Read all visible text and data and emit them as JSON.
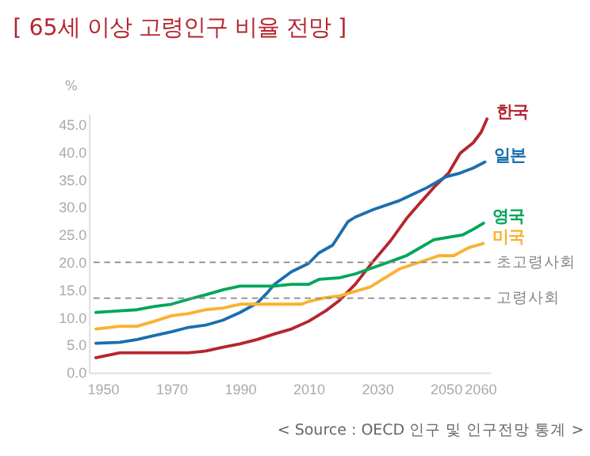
{
  "chart_data": {
    "type": "line",
    "title": "[ 65세 이상 고령인구 비율 전망 ]",
    "ylabel": "%",
    "xlim": [
      1946,
      2063
    ],
    "xticks": [
      1950,
      1970,
      1990,
      2010,
      2030,
      2050,
      2060
    ],
    "ylim": [
      0,
      47
    ],
    "yticks": [
      {
        "value": 0,
        "label": "0.0"
      },
      {
        "value": 5,
        "label": "5.0"
      },
      {
        "value": 10,
        "label": "10.0"
      },
      {
        "value": 15,
        "label": "15.0"
      },
      {
        "value": 20,
        "label": "20.0"
      },
      {
        "value": 25,
        "label": "25.0"
      },
      {
        "value": 30,
        "label": "30.0"
      },
      {
        "value": 35,
        "label": "35.0"
      },
      {
        "value": 40,
        "label": "40.0"
      },
      {
        "value": 45,
        "label": "45.0"
      }
    ],
    "grid": false,
    "legend": false,
    "marker": "none",
    "line_style": "solid",
    "series": [
      {
        "name": "한국",
        "color": "#b5262f",
        "x": [
          1948,
          1955,
          1975,
          1980,
          1985,
          1990,
          1995,
          2000,
          2005,
          2010,
          2015,
          2019,
          2023.6,
          2028.6,
          2034,
          2038.5,
          2042.4,
          2047,
          2050.8,
          2054.2,
          2058,
          2060.3,
          2062
        ],
        "values": [
          2.7,
          3.6,
          3.6,
          3.9,
          4.6,
          5.2,
          6,
          7,
          7.9,
          9.3,
          11.2,
          13.1,
          16,
          20,
          24,
          27.9,
          30.7,
          33.9,
          36.2,
          39.8,
          41.7,
          43.6,
          46
        ]
      },
      {
        "name": "일본",
        "color": "#1a6faf",
        "x": [
          1948,
          1955,
          1960,
          1965,
          1970,
          1975,
          1980,
          1985,
          1990,
          1995,
          1998,
          2000,
          2005,
          2010,
          2013,
          2017,
          2019,
          2021.5,
          2023.6,
          2029,
          2036.5,
          2044.7,
          2050,
          2054.2,
          2058,
          2061.4
        ],
        "values": [
          5.3,
          5.5,
          6,
          6.7,
          7.4,
          8.2,
          8.6,
          9.5,
          10.9,
          12.6,
          14.5,
          16,
          18.3,
          19.8,
          21.7,
          23.1,
          25,
          27.4,
          28.2,
          29.6,
          31.2,
          33.6,
          35.5,
          36.2,
          37.1,
          38.2
        ]
      },
      {
        "name": "영국",
        "color": "#00a65a",
        "x": [
          1948,
          1955,
          1960,
          1965,
          1970,
          1975,
          1980,
          1985,
          1990,
          2000,
          2005,
          2010,
          2013,
          2019,
          2023.6,
          2032.3,
          2038.5,
          2046.5,
          2051.2,
          2055,
          2058,
          2061
        ],
        "values": [
          10.9,
          11.2,
          11.4,
          12,
          12.4,
          13.3,
          14.1,
          15,
          15.7,
          15.7,
          16,
          16,
          16.9,
          17.2,
          17.9,
          19.8,
          21.2,
          24.1,
          24.6,
          25,
          26,
          27.1
        ]
      },
      {
        "name": "미국",
        "color": "#f9b233",
        "x": [
          1948,
          1955,
          1960,
          1965,
          1970,
          1975,
          1980,
          1985,
          1990,
          2000,
          2008,
          2010,
          2015,
          2019,
          2027.9,
          2036.5,
          2048,
          2052.3,
          2056.8,
          2060.9
        ],
        "values": [
          7.9,
          8.4,
          8.4,
          9.3,
          10.3,
          10.7,
          11.4,
          11.7,
          12.4,
          12.4,
          12.4,
          12.9,
          13.6,
          13.9,
          15.5,
          18.8,
          21.2,
          21.2,
          22.7,
          23.4
        ]
      }
    ],
    "ref_lines": [
      {
        "axis": "y",
        "value": 20,
        "label": "초고령사회",
        "color": "#888888",
        "line_style": "dashed"
      },
      {
        "axis": "y",
        "value": 13.5,
        "label": "고령사회",
        "color": "#888888",
        "line_style": "dashed"
      }
    ],
    "annotations": [
      "< Source : OECD 인구 및 인구전망 통계 >"
    ]
  }
}
